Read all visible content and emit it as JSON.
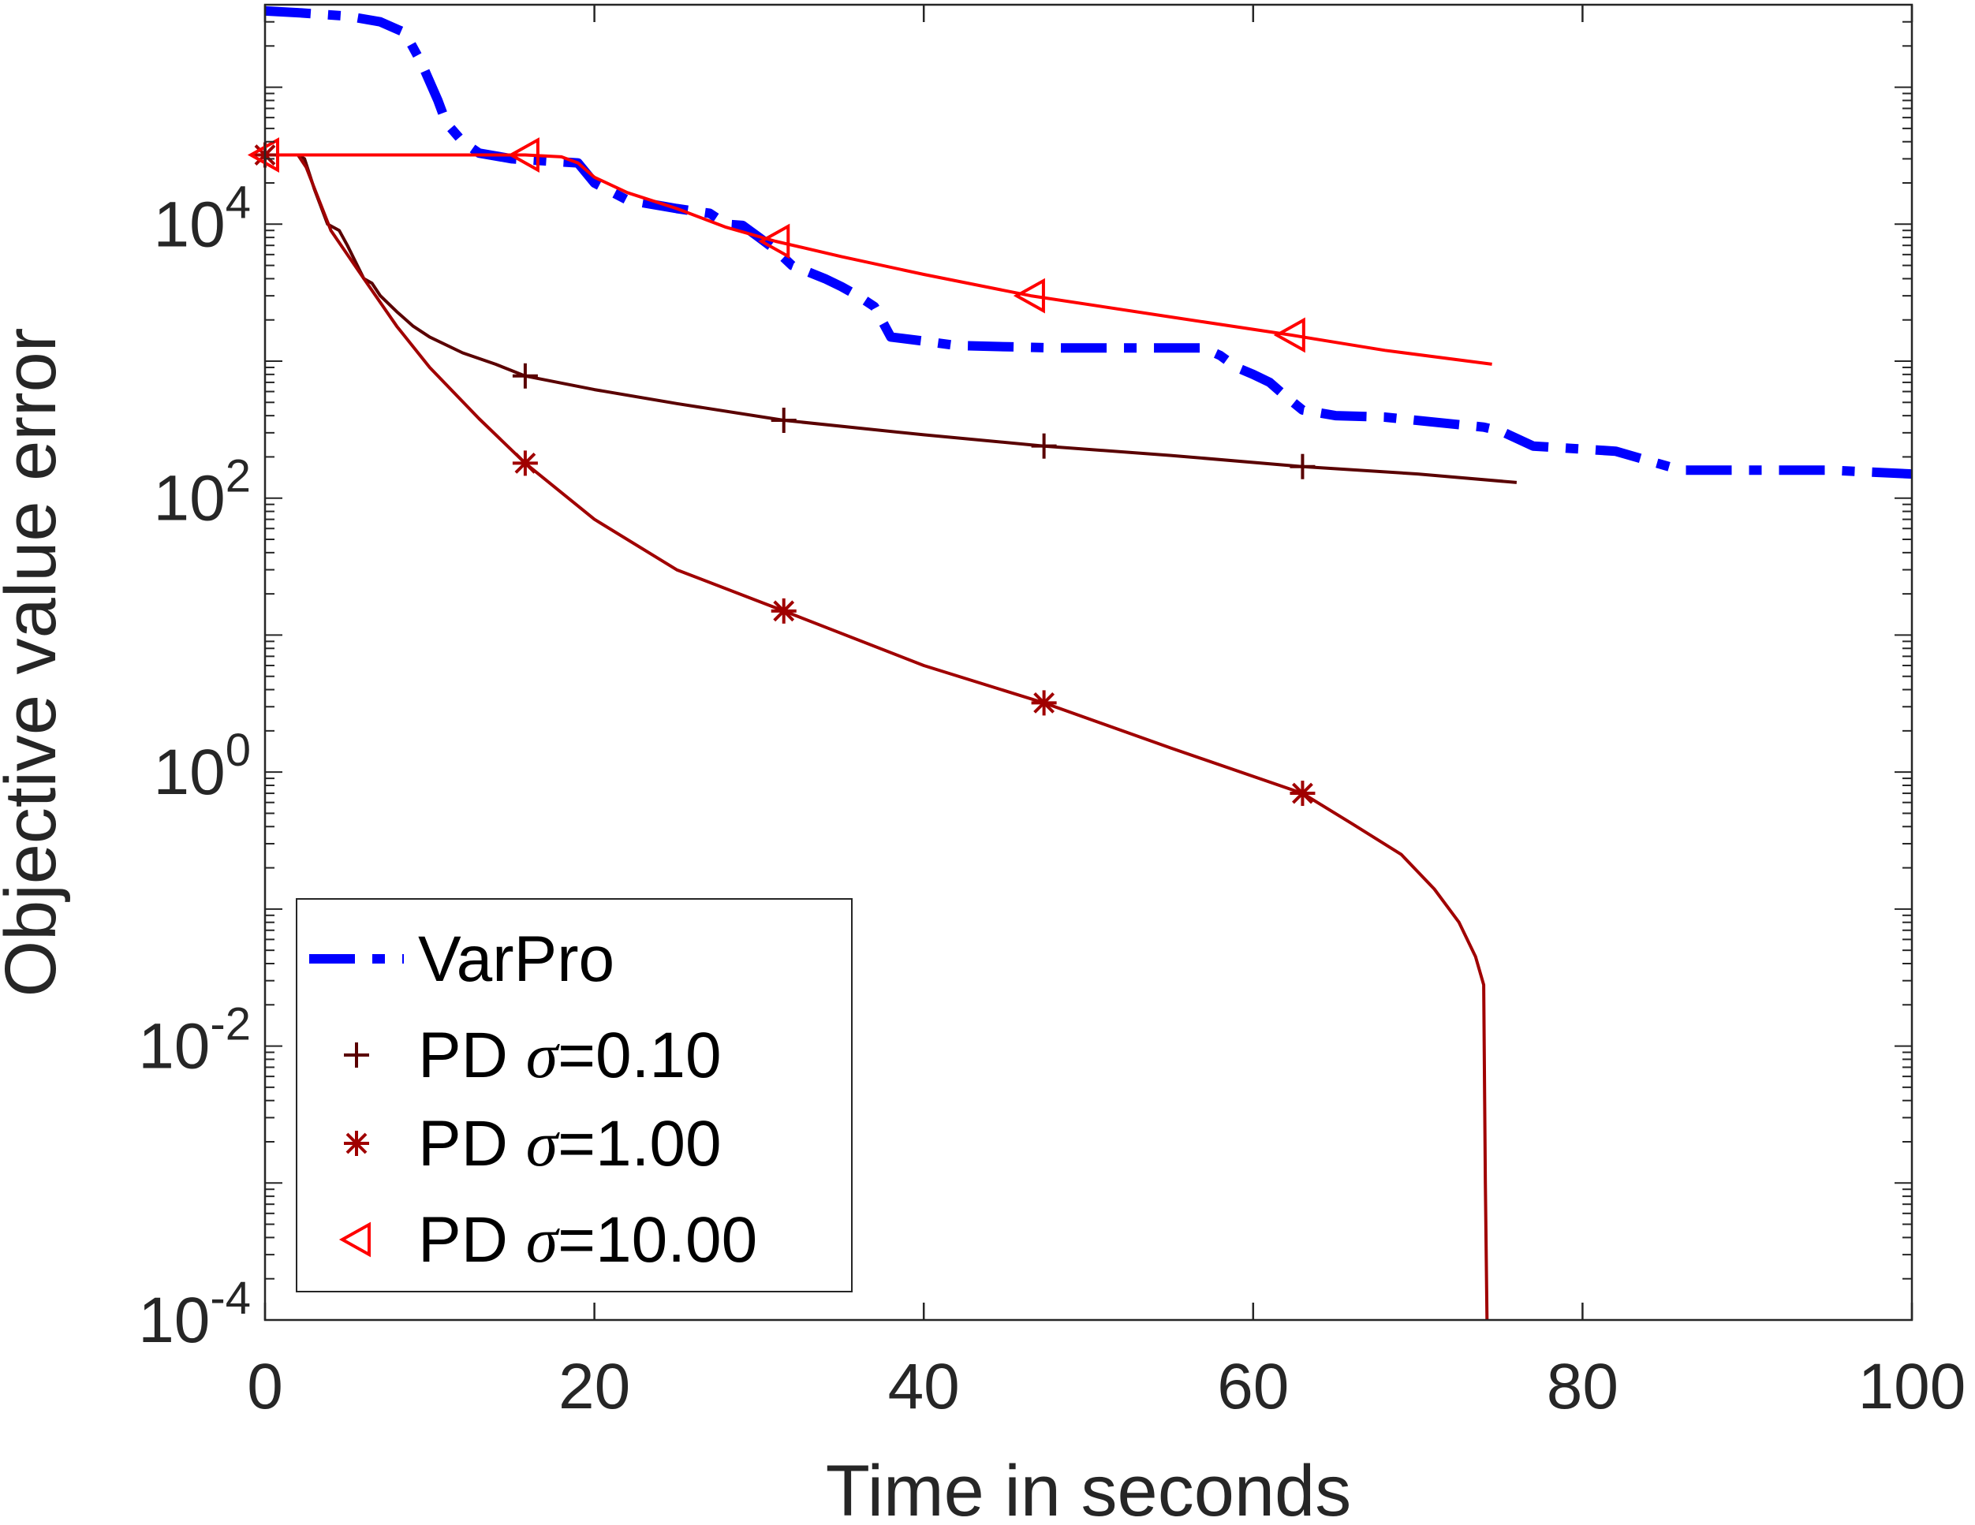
{
  "chart_data": {
    "type": "line",
    "xlabel": "Time in seconds",
    "ylabel": "Objective value error",
    "xlim": [
      0,
      100
    ],
    "ylim": [
      0.0001,
      400000
    ],
    "yscale": "log",
    "grid": false,
    "legend_position": "bottom-left",
    "x_ticks": [
      "0",
      "20",
      "40",
      "60",
      "80",
      "100"
    ],
    "y_ticks": [
      {
        "base": "10",
        "exp": "-4"
      },
      {
        "base": "10",
        "exp": "-2"
      },
      {
        "base": "10",
        "exp": "0"
      },
      {
        "base": "10",
        "exp": "2"
      },
      {
        "base": "10",
        "exp": "4"
      }
    ],
    "series": [
      {
        "name": "VarPro",
        "color": "#0000ff",
        "style": "dash-dot-thick",
        "marker": "none",
        "x": [
          0,
          2,
          5,
          7,
          8.5,
          9.5,
          10.5,
          11,
          12,
          13,
          15,
          19,
          20,
          22,
          25,
          27,
          28,
          29,
          30,
          31,
          32,
          34,
          35,
          36,
          37,
          38,
          40,
          42,
          48,
          57,
          58,
          59,
          60,
          61,
          62,
          63,
          65,
          68,
          74,
          75,
          77,
          82,
          86,
          95,
          100
        ],
        "y": [
          360000,
          350000,
          330000,
          300000,
          250000,
          150000,
          80000,
          55000,
          40000,
          33000,
          30000,
          28000,
          20000,
          15000,
          13000,
          12000,
          10000,
          9800,
          8000,
          6500,
          5000,
          4000,
          3500,
          3000,
          2500,
          1500,
          1400,
          1300,
          1250,
          1250,
          1100,
          900,
          800,
          700,
          550,
          440,
          400,
          390,
          330,
          310,
          240,
          220,
          160,
          160,
          150
        ]
      },
      {
        "name": "PD σ=0.10",
        "color": "#5a0000",
        "style": "solid",
        "marker": "plus",
        "x": [
          0,
          2,
          2.4,
          3,
          3.8,
          4.5,
          5,
          6,
          6.5,
          7,
          8,
          9,
          10,
          12,
          14,
          15.8,
          20,
          25,
          31.5,
          40,
          47.3,
          55,
          63,
          70,
          76
        ],
        "y": [
          32000,
          32000,
          30000,
          18000,
          10000,
          9000,
          7000,
          4000,
          3700,
          3000,
          2300,
          1800,
          1500,
          1150,
          950,
          780,
          620,
          490,
          370,
          290,
          240,
          205,
          170,
          150,
          130
        ]
      },
      {
        "name": "PD σ=1.00",
        "color": "#a00000",
        "style": "solid",
        "marker": "asterisk",
        "x": [
          0,
          2,
          2.5,
          4,
          6,
          8,
          10,
          13,
          15.8,
          20,
          25,
          31.5,
          40,
          47.3,
          55,
          63,
          66,
          69,
          71,
          72.5,
          73.5,
          74,
          74.1,
          74.2
        ],
        "y": [
          32000,
          32000,
          26000,
          9000,
          4000,
          1800,
          900,
          380,
          180,
          70,
          30,
          15,
          6,
          3.2,
          1.5,
          0.7,
          0.42,
          0.25,
          0.14,
          0.08,
          0.045,
          0.028,
          0.001,
          0.0001
        ]
      },
      {
        "name": "PD σ=10.00",
        "color": "#ff0000",
        "style": "solid",
        "marker": "triangle-left",
        "x": [
          0,
          10,
          15.8,
          18,
          19,
          20,
          22,
          25,
          28,
          31,
          35,
          40,
          46.5,
          55,
          62.3,
          68,
          74.5
        ],
        "y": [
          32000,
          32000,
          32000,
          31000,
          28000,
          22000,
          17000,
          13000,
          9500,
          7500,
          5800,
          4300,
          3000,
          2100,
          1550,
          1200,
          950
        ]
      }
    ],
    "markers": [
      {
        "series": 0,
        "x": []
      },
      {
        "series": 1,
        "x": [
          15.8,
          31.5,
          47.3,
          63
        ]
      },
      {
        "series": 2,
        "x": [
          0,
          15.8,
          31.5,
          47.3,
          63
        ]
      },
      {
        "series": 3,
        "x": [
          0,
          15.8,
          31,
          46.5,
          62.3
        ]
      }
    ]
  },
  "legend": {
    "items": [
      {
        "prefix": "VarPro",
        "sigma": "",
        "value": ""
      },
      {
        "prefix": "PD ",
        "sigma": "σ",
        "value": "=0.10"
      },
      {
        "prefix": "PD ",
        "sigma": "σ",
        "value": "=1.00"
      },
      {
        "prefix": "PD ",
        "sigma": "σ",
        "value": "=10.00"
      }
    ]
  }
}
